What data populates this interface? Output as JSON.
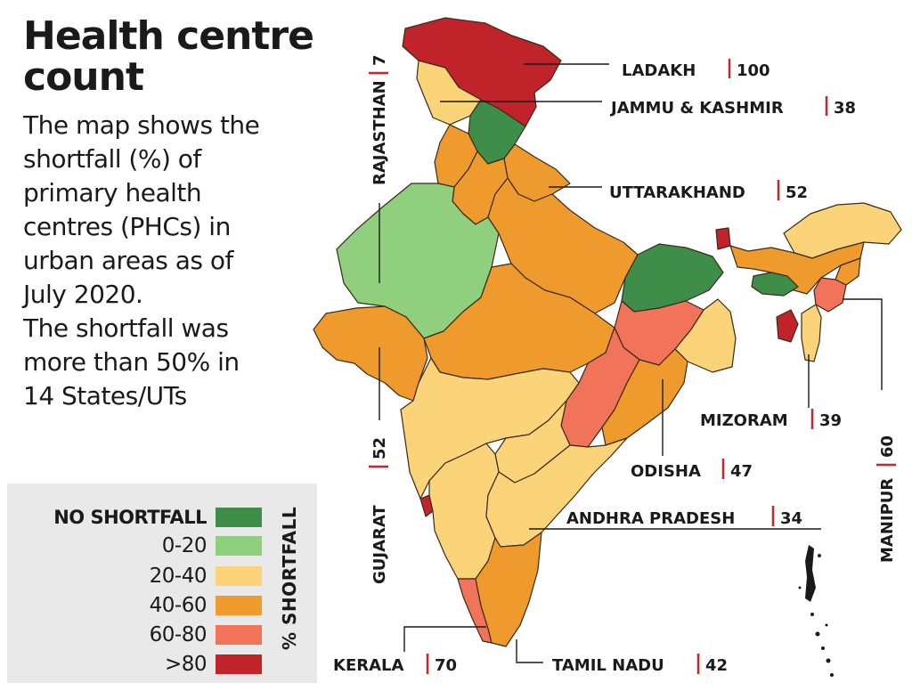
{
  "title": "Health centre count",
  "description": "The map shows the shortfall (%) of primary health centres (PHCs) in urban areas as of July 2020. The shortfall was more than 50% in 14 States/UTs",
  "description_lines": [
    "The map shows the",
    "shortfall (%) of",
    "primary health",
    "centres (PHCs) in",
    "urban areas as of",
    "July 2020.",
    "The shortfall was",
    "more than 50% in",
    "14 States/UTs"
  ],
  "legend": {
    "axis_label": "% SHORTFALL",
    "items": [
      {
        "label": "NO SHORTFALL",
        "color": "#3e8e4a"
      },
      {
        "label": "0-20",
        "color": "#8fcf7d"
      },
      {
        "label": "20-40",
        "color": "#fbd47a"
      },
      {
        "label": "40-60",
        "color": "#ee9a2c"
      },
      {
        "label": "60-80",
        "color": "#f0735a"
      },
      {
        "label": ">80",
        "color": "#c0242a"
      }
    ]
  },
  "callouts": [
    {
      "name": "LADAKH",
      "value": "100"
    },
    {
      "name": "JAMMU & KASHMIR",
      "value": "38"
    },
    {
      "name": "UTTARAKHAND",
      "value": "52"
    },
    {
      "name": "RAJASTHAN",
      "value": "7"
    },
    {
      "name": "GUJARAT",
      "value": "52"
    },
    {
      "name": "MIZORAM",
      "value": "39"
    },
    {
      "name": "MANIPUR",
      "value": "60"
    },
    {
      "name": "ODISHA",
      "value": "47"
    },
    {
      "name": "ANDHRA PRADESH",
      "value": "34"
    },
    {
      "name": "KERALA",
      "value": "70"
    },
    {
      "name": "TAMIL NADU",
      "value": "42"
    }
  ]
}
